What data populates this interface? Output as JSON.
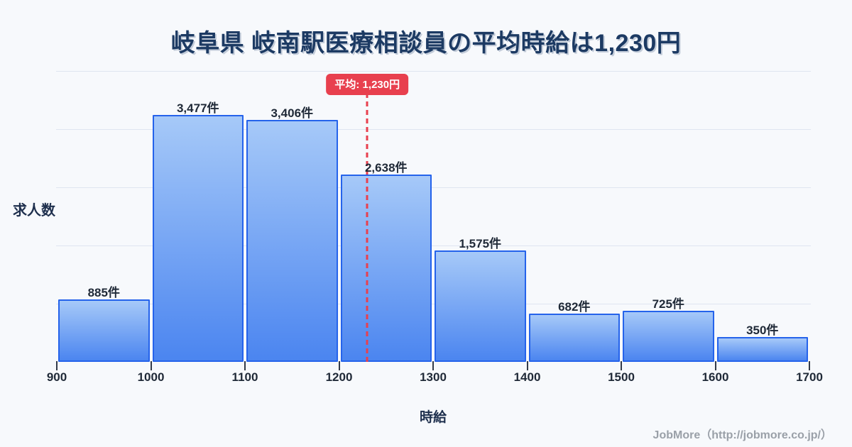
{
  "title": "岐阜県 岐南駅医療相談員の平均時給は1,230円",
  "footer": "JobMore（http://jobmore.co.jp/）",
  "colors": {
    "background": "#f7f9fc",
    "title_text": "#1c3a63",
    "bar_gradient_top": "#a6c9f8",
    "bar_gradient_bottom": "#4b85f0",
    "bar_border": "#2563eb",
    "gridline": "#dfe5f0",
    "axis_text": "#1f2937",
    "average_red": "#e8404e",
    "footer_gray": "#9aa0a8"
  },
  "chart_data": {
    "type": "bar",
    "title": "岐阜県 岐南駅医療相談員の平均時給は1,230円",
    "xlabel": "時給",
    "ylabel": "求人数",
    "bin_edges": [
      900,
      1000,
      1100,
      1200,
      1300,
      1400,
      1500,
      1600,
      1700
    ],
    "x_tick_labels": [
      "900",
      "1000",
      "1100",
      "1200",
      "1300",
      "1400",
      "1500",
      "1600",
      "1700"
    ],
    "values": [
      885,
      3477,
      3406,
      2638,
      1575,
      682,
      725,
      350
    ],
    "value_labels": [
      "885件",
      "3,477件",
      "3,406件",
      "2,638件",
      "1,575件",
      "682件",
      "725件",
      "350件"
    ],
    "average": 1230,
    "average_label": "平均: 1,230円",
    "ylim": [
      0,
      4100
    ],
    "grid": "horizontal-only",
    "legend": "none"
  }
}
